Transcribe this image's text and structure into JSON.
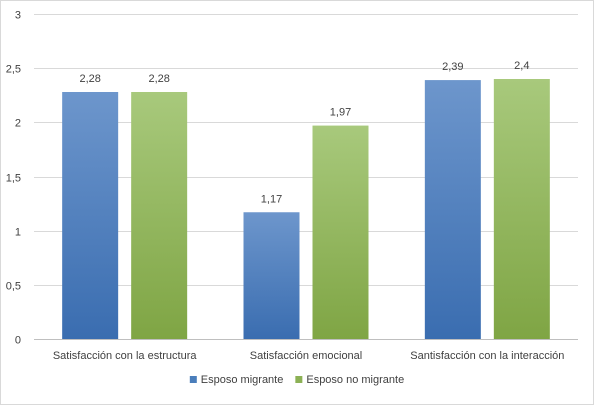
{
  "chart_data": {
    "type": "bar",
    "categories": [
      "Satisfacción con la estructura",
      "Satisfacción emocional",
      "Santisfacción con la interacción"
    ],
    "series": [
      {
        "name": "Esposo migrante",
        "values": [
          2.28,
          1.17,
          2.39
        ],
        "labels": [
          "2,28",
          "1,17",
          "2,39"
        ],
        "color": "#4a7ebb"
      },
      {
        "name": "Esposo no migrante",
        "values": [
          2.28,
          1.97,
          2.4
        ],
        "labels": [
          "2,28",
          "1,97",
          "2,4"
        ],
        "color": "#8cb155"
      }
    ],
    "yticks": [
      "0",
      "0,5",
      "1",
      "1,5",
      "2",
      "2,5",
      "3"
    ],
    "ylim": [
      0,
      3
    ],
    "grid": true,
    "legend_position": "bottom"
  }
}
